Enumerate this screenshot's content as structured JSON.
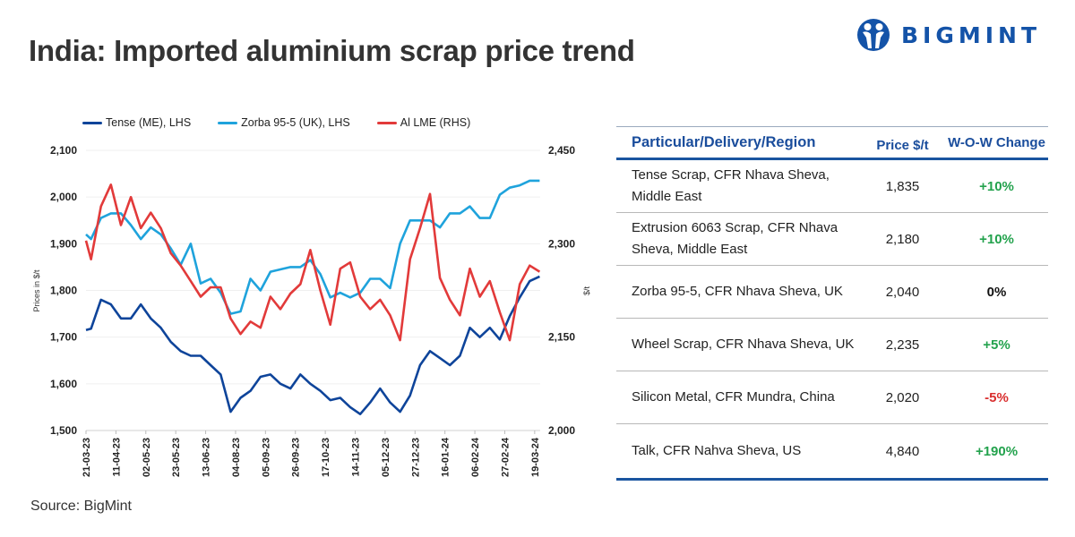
{
  "header": {
    "title": "India: Imported aluminium scrap price trend",
    "logo_text": "BIGMINT"
  },
  "source": "Source: BigMint",
  "colors": {
    "tense": "#0e449a",
    "zorba": "#1fa3dc",
    "lme": "#e23a3a",
    "header_blue": "#1a4d9c",
    "positive": "#23a24d",
    "negative": "#d92f2f",
    "neutral": "#111111"
  },
  "chart_data": {
    "type": "line",
    "title": "",
    "ylabel_left": "Prices in $/t",
    "ylabel_right": "$/t",
    "ylim_left": [
      1500,
      2100
    ],
    "ylim_right": [
      2000,
      2450
    ],
    "yticks_left": [
      "1,500",
      "1,600",
      "1,700",
      "1,800",
      "1,900",
      "2,000",
      "2,100"
    ],
    "yticks_right": [
      "2,000",
      "2,150",
      "2,300",
      "2,450"
    ],
    "x_tick_labels": [
      "21-03-23",
      "11-04-23",
      "02-05-23",
      "23-05-23",
      "13-06-23",
      "04-08-23",
      "05-09-23",
      "26-09-23",
      "17-10-23",
      "14-11-23",
      "05-12-23",
      "27-12-23",
      "16-01-24",
      "06-02-24",
      "27-02-24",
      "19-03-24"
    ],
    "grid": "horizontal",
    "legend_placement": "top",
    "series": [
      {
        "name": "Tense (ME), LHS",
        "axis": "left",
        "values": [
          1715,
          1718,
          1780,
          1770,
          1740,
          1740,
          1770,
          1740,
          1720,
          1690,
          1670,
          1660,
          1660,
          1640,
          1620,
          1540,
          1570,
          1585,
          1615,
          1620,
          1600,
          1590,
          1620,
          1600,
          1585,
          1565,
          1570,
          1550,
          1535,
          1560,
          1590,
          1560,
          1540,
          1575,
          1640,
          1670,
          1655,
          1640,
          1660,
          1720,
          1700,
          1720,
          1695,
          1745,
          1785,
          1820,
          1830
        ]
      },
      {
        "name": "Zorba 95-5 (UK), LHS",
        "axis": "left",
        "values": [
          1920,
          1910,
          1955,
          1965,
          1965,
          1940,
          1910,
          1935,
          1920,
          1890,
          1855,
          1900,
          1815,
          1825,
          1795,
          1750,
          1755,
          1825,
          1800,
          1840,
          1845,
          1850,
          1850,
          1865,
          1835,
          1785,
          1795,
          1785,
          1795,
          1825,
          1825,
          1805,
          1900,
          1950,
          1950,
          1950,
          1935,
          1965,
          1965,
          1980,
          1955,
          1955,
          2005,
          2020,
          2025,
          2035,
          2035
        ]
      },
      {
        "name": "Al LME (RHS)",
        "axis": "right",
        "values": [
          2305,
          2275,
          2360,
          2395,
          2330,
          2375,
          2325,
          2350,
          2325,
          2285,
          2265,
          2240,
          2215,
          2230,
          2230,
          2180,
          2155,
          2175,
          2165,
          2215,
          2195,
          2220,
          2235,
          2290,
          2225,
          2170,
          2260,
          2270,
          2215,
          2195,
          2210,
          2185,
          2145,
          2275,
          2325,
          2380,
          2245,
          2210,
          2185,
          2260,
          2215,
          2240,
          2190,
          2145,
          2235,
          2265,
          2255
        ]
      }
    ]
  },
  "table": {
    "headers": [
      "Particular/Delivery/Region",
      "Price $/t",
      "W-O-W Change"
    ],
    "rows": [
      {
        "name": "Tense Scrap, CFR Nhava Sheva, Middle East",
        "price": "1,835",
        "change": "+10%",
        "trend": "positive"
      },
      {
        "name": "Extrusion 6063 Scrap, CFR Nhava Sheva, Middle East",
        "price": "2,180",
        "change": "+10%",
        "trend": "positive"
      },
      {
        "name": "Zorba 95-5, CFR Nhava Sheva, UK",
        "price": "2,040",
        "change": "0%",
        "trend": "neutral"
      },
      {
        "name": "Wheel Scrap, CFR Nhava Sheva, UK",
        "price": "2,235",
        "change": "+5%",
        "trend": "positive"
      },
      {
        "name": "Silicon Metal, CFR Mundra, China",
        "price": "2,020",
        "change": "-5%",
        "trend": "negative"
      },
      {
        "name": "Talk, CFR Nahva Sheva, US",
        "price": "4,840",
        "change": "+190%",
        "trend": "positive"
      }
    ]
  }
}
